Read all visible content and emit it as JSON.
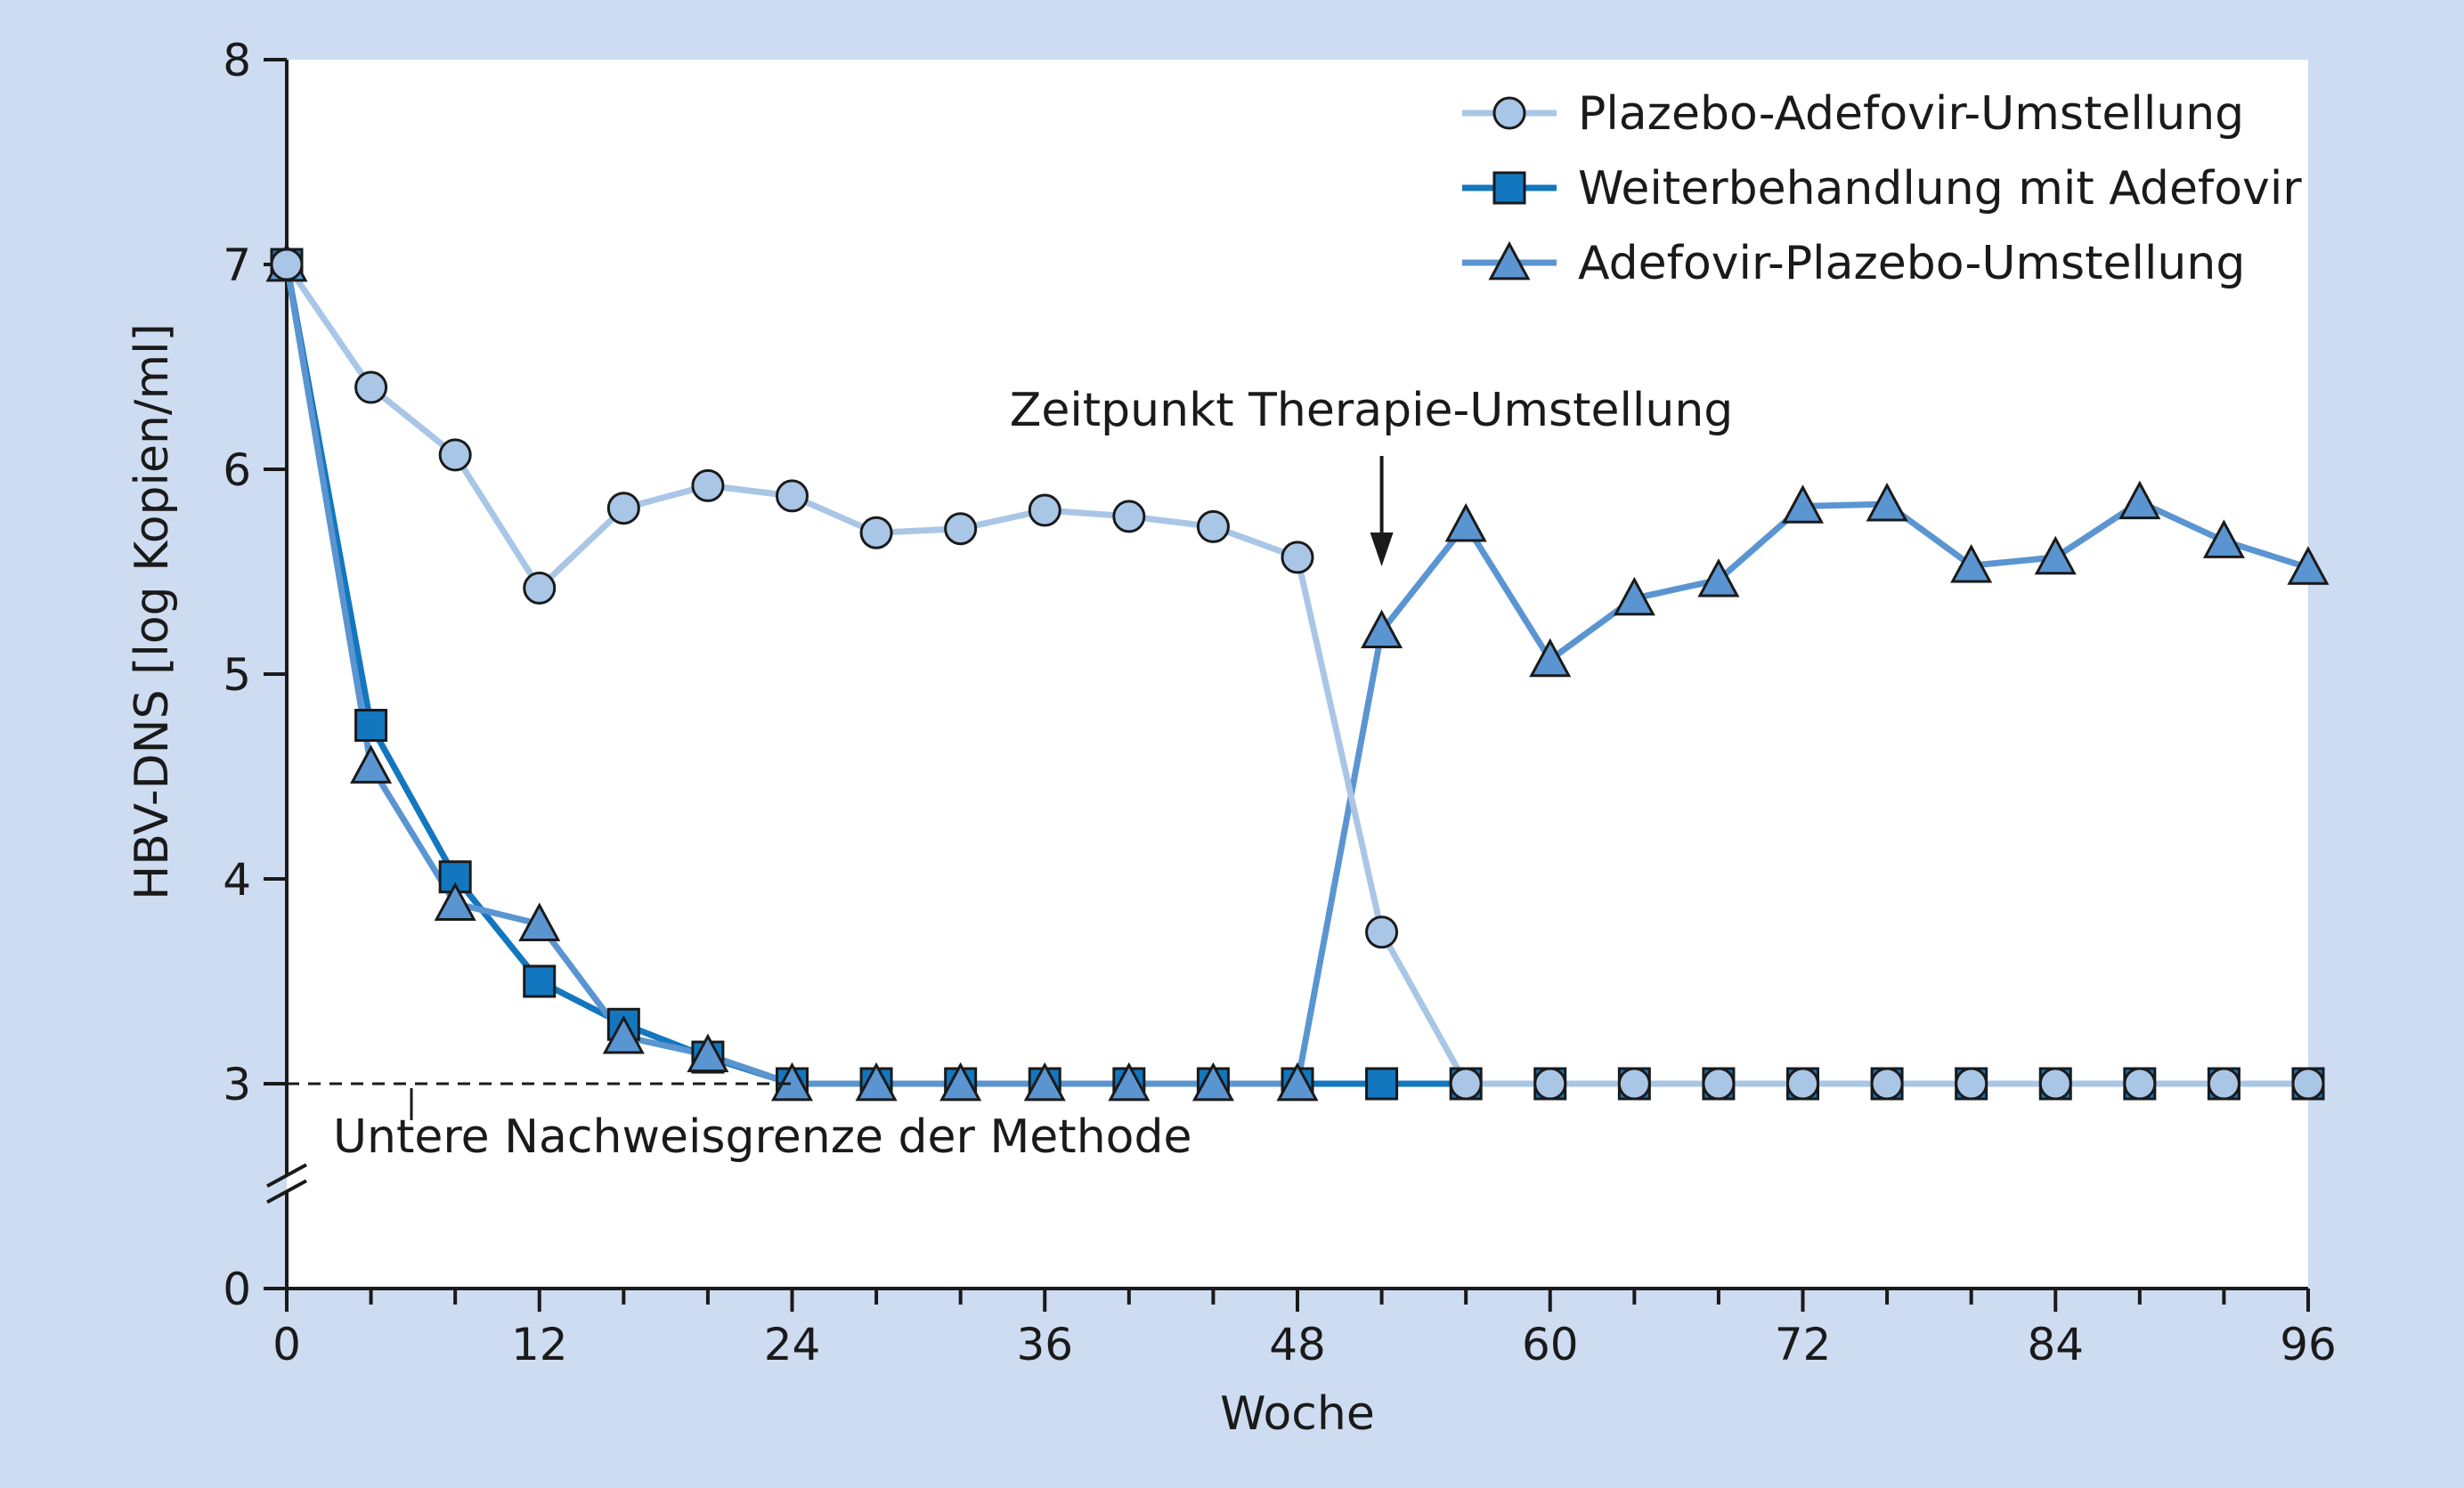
{
  "chart_data": {
    "type": "line",
    "xlabel": "Woche",
    "ylabel": "HBV-DNS [log Kopien/ml]",
    "xlim": [
      0,
      96
    ],
    "ylim": [
      0,
      8
    ],
    "y_axis_break": [
      0,
      3
    ],
    "x_ticks": [
      "0",
      "12",
      "24",
      "36",
      "48",
      "60",
      "72",
      "84",
      "96"
    ],
    "y_ticks": [
      "0",
      "3",
      "4",
      "5",
      "6",
      "7",
      "8"
    ],
    "legend_position": "top-right",
    "x": [
      0,
      4,
      8,
      12,
      16,
      20,
      24,
      28,
      32,
      36,
      40,
      44,
      48,
      52,
      56,
      60,
      64,
      68,
      72,
      76,
      80,
      84,
      88,
      92,
      96
    ],
    "series": [
      {
        "name": "Plazebo-Adefovir-Umstellung",
        "marker": "circle",
        "color": "#a9c6e6",
        "values": [
          7.0,
          6.4,
          6.07,
          5.42,
          5.81,
          5.92,
          5.87,
          5.69,
          5.71,
          5.8,
          5.77,
          5.72,
          5.57,
          3.74,
          3.0,
          3.0,
          3.0,
          3.0,
          3.0,
          3.0,
          3.0,
          3.0,
          3.0,
          3.0,
          3.0
        ]
      },
      {
        "name": "Weiterbehandlung mit Adefovir",
        "marker": "square",
        "color": "#1377bf",
        "values": [
          7.0,
          4.75,
          4.01,
          3.5,
          3.29,
          3.13,
          3.0,
          3.0,
          3.0,
          3.0,
          3.0,
          3.0,
          3.0,
          3.0,
          3.0,
          3.0,
          3.0,
          3.0,
          3.0,
          3.0,
          3.0,
          3.0,
          3.0,
          3.0,
          3.0
        ]
      },
      {
        "name": "Adefovir-Plazebo-Umstellung",
        "marker": "triangle",
        "color": "#5a95d1",
        "values": [
          7.0,
          4.55,
          3.88,
          3.78,
          3.23,
          3.14,
          3.0,
          3.0,
          3.0,
          3.0,
          3.0,
          3.0,
          3.0,
          5.21,
          5.73,
          5.07,
          5.37,
          5.46,
          5.82,
          5.83,
          5.53,
          5.57,
          5.84,
          5.65,
          5.52
        ]
      }
    ],
    "annotations": [
      {
        "text": "Zeitpunkt Therapie-Umstellung",
        "x": 52
      },
      {
        "text": "Untere Nachweisgrenze der Methode",
        "y": 3
      }
    ]
  }
}
